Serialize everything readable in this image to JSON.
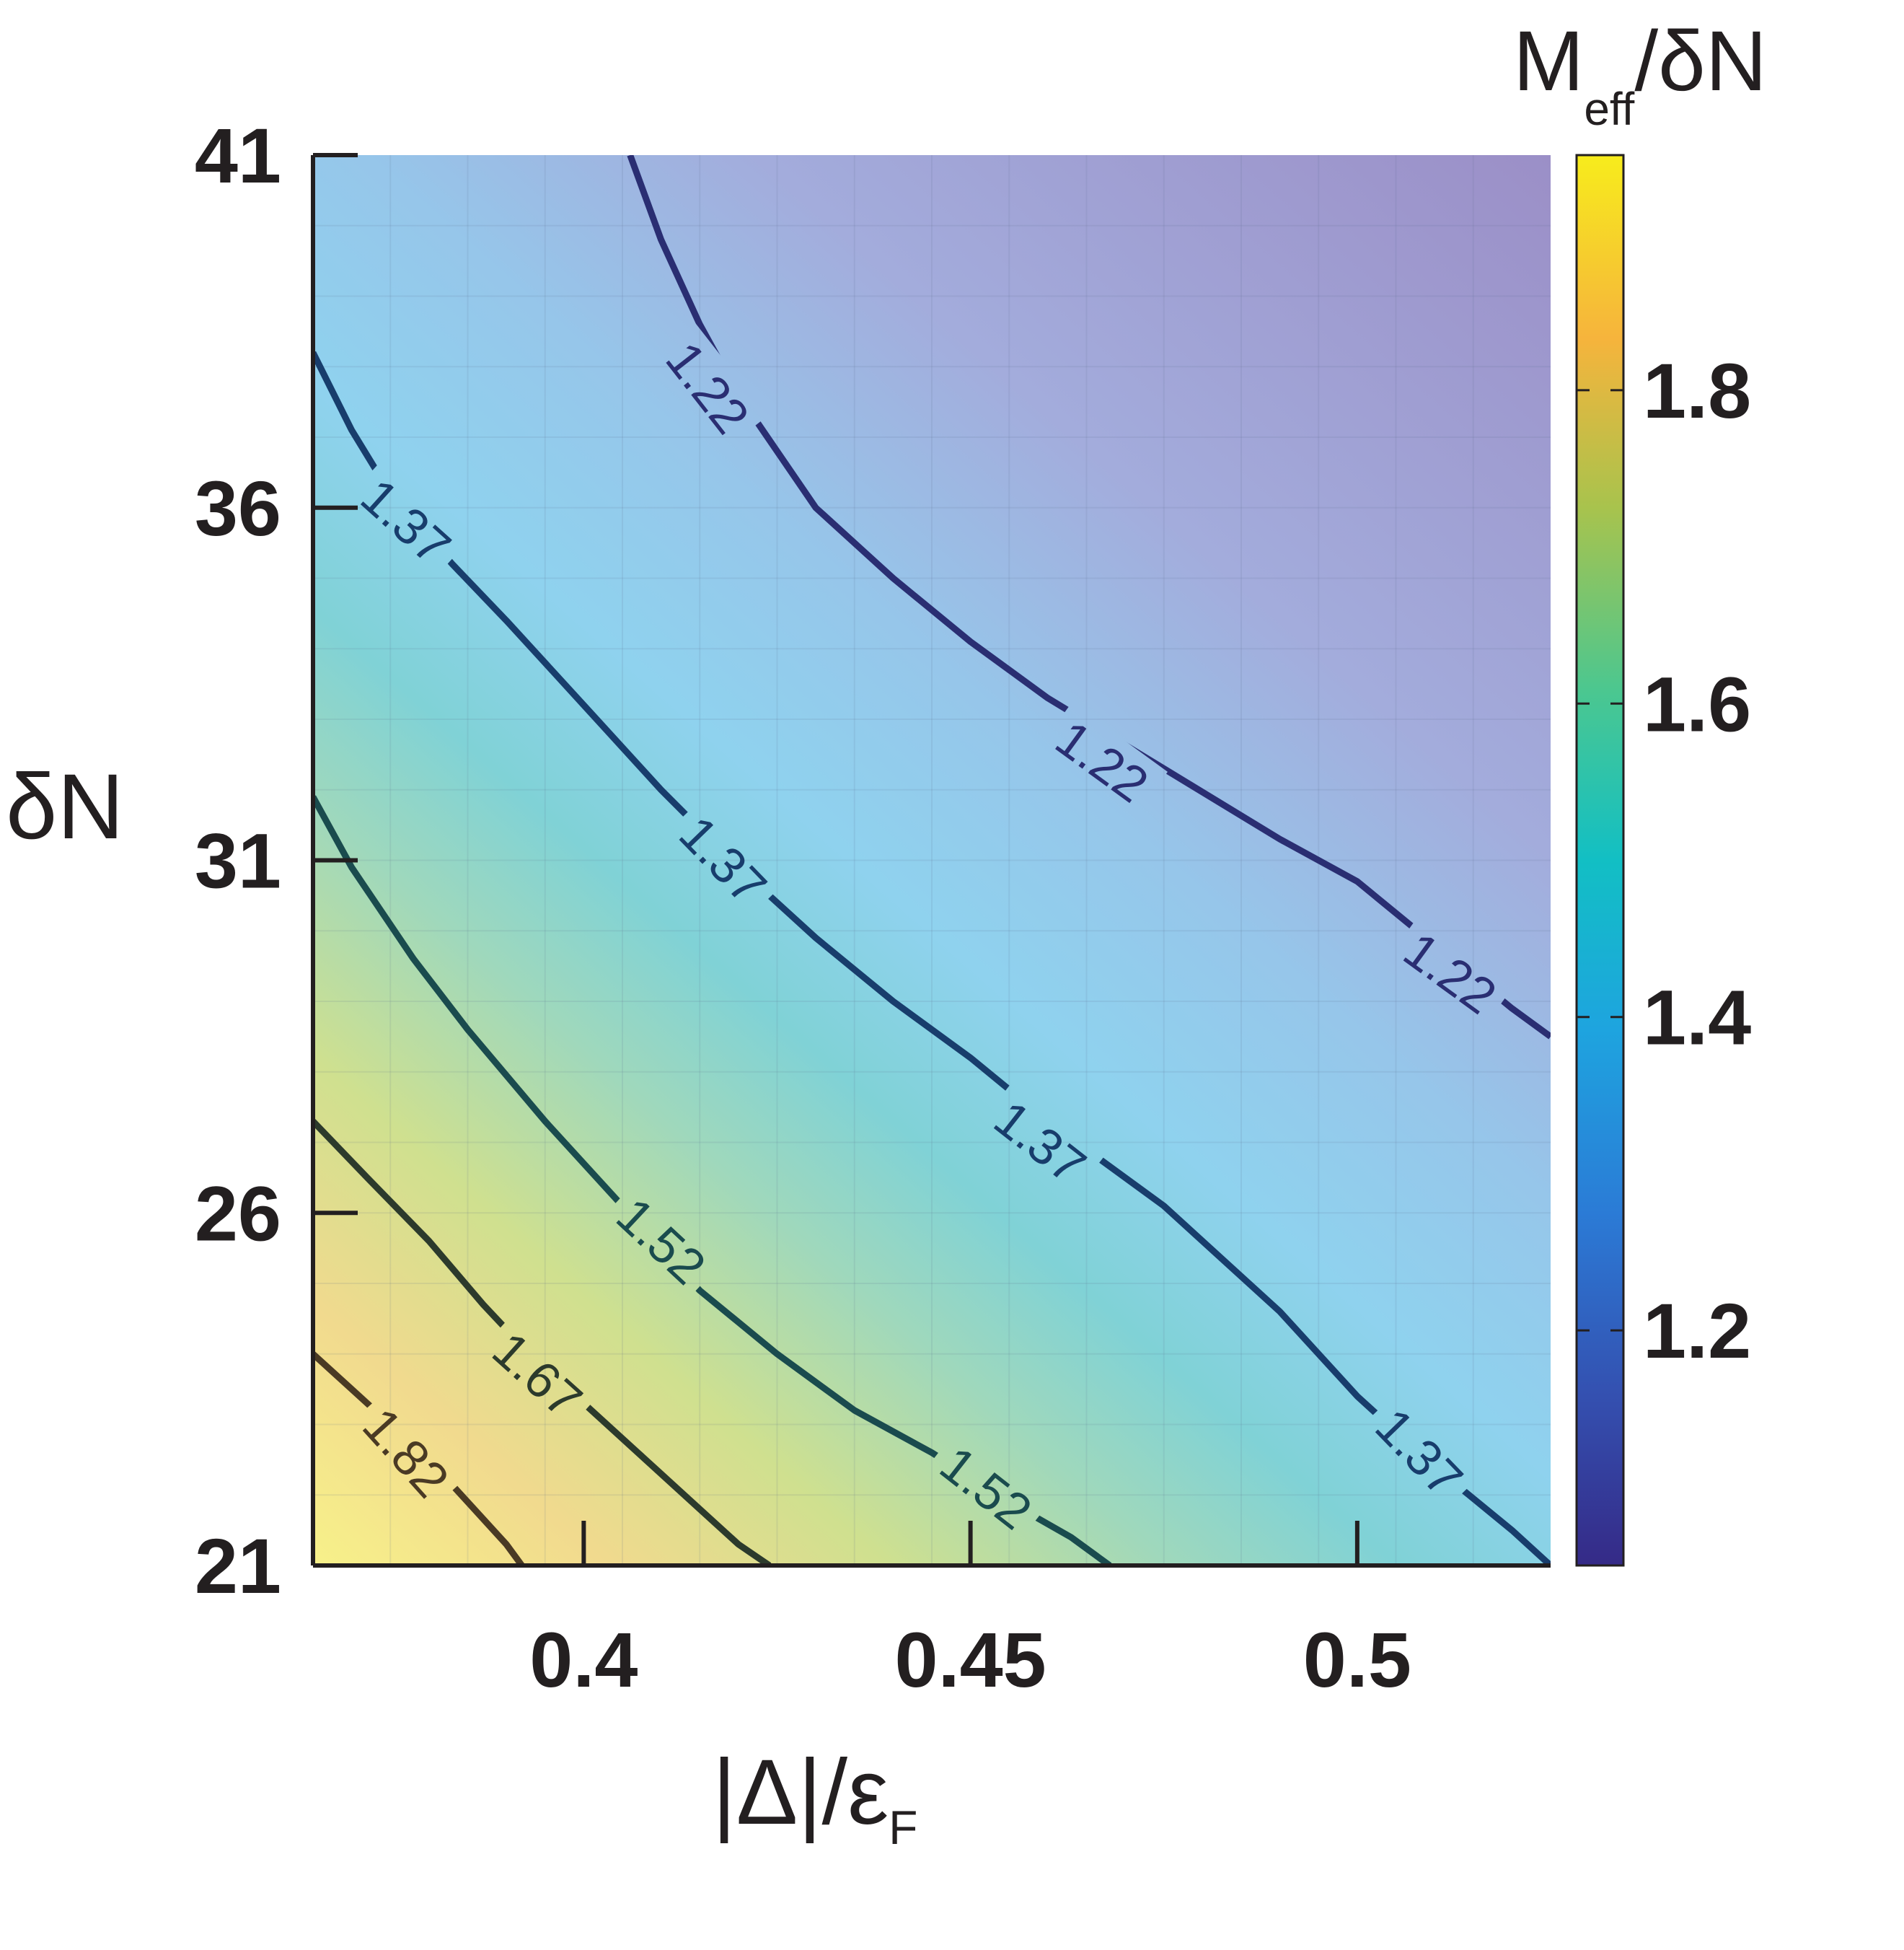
{
  "chart_data": {
    "type": "heatmap",
    "title": "",
    "xlabel": "|Δ|/ε",
    "xlabel_sub": "F",
    "ylabel": "δN",
    "colorbar_label": "M",
    "colorbar_label_sub": "eff",
    "colorbar_label_tail": "/δN",
    "xlim": [
      0.365,
      0.525
    ],
    "ylim": [
      21,
      41
    ],
    "xticks": [
      0.4,
      0.45,
      0.5
    ],
    "xtick_labels": [
      "0.4",
      "0.45",
      "0.5"
    ],
    "yticks": [
      21,
      26,
      31,
      36,
      41
    ],
    "ytick_labels": [
      "21",
      "26",
      "31",
      "36",
      "41"
    ],
    "colorbar_range": [
      1.05,
      1.95
    ],
    "colorbar_ticks": [
      1.2,
      1.4,
      1.6,
      1.8
    ],
    "colorbar_tick_labels": [
      "1.2",
      "1.4",
      "1.6",
      "1.8"
    ],
    "colormap": "parula",
    "grid": true,
    "contours": [
      {
        "level": "1.22",
        "color": "#2a2e72",
        "points": [
          [
            0.406,
            41
          ],
          [
            0.41,
            39.8
          ],
          [
            0.415,
            38.6
          ],
          [
            0.42,
            37.6
          ],
          [
            0.43,
            36.0
          ],
          [
            0.44,
            35.0
          ],
          [
            0.45,
            34.1
          ],
          [
            0.46,
            33.3
          ],
          [
            0.475,
            32.3
          ],
          [
            0.49,
            31.3
          ],
          [
            0.5,
            30.7
          ],
          [
            0.51,
            29.8
          ],
          [
            0.52,
            28.9
          ],
          [
            0.525,
            28.5
          ]
        ],
        "labels": [
          {
            "text": "1.22",
            "x": 0.416,
            "y": 37.7,
            "angle": 52
          },
          {
            "text": "1.22",
            "x": 0.467,
            "y": 32.4,
            "angle": 36
          },
          {
            "text": "1.22",
            "x": 0.512,
            "y": 29.4,
            "angle": 36
          }
        ]
      },
      {
        "level": "1.37",
        "color": "#183d6c",
        "points": [
          [
            0.365,
            38.2
          ],
          [
            0.37,
            37.1
          ],
          [
            0.375,
            36.2
          ],
          [
            0.383,
            35.2
          ],
          [
            0.39,
            34.4
          ],
          [
            0.4,
            33.2
          ],
          [
            0.41,
            32.0
          ],
          [
            0.42,
            30.9
          ],
          [
            0.43,
            29.9
          ],
          [
            0.44,
            29.0
          ],
          [
            0.45,
            28.2
          ],
          [
            0.46,
            27.3
          ],
          [
            0.475,
            26.1
          ],
          [
            0.49,
            24.6
          ],
          [
            0.5,
            23.4
          ],
          [
            0.51,
            22.4
          ],
          [
            0.52,
            21.5
          ],
          [
            0.525,
            21.0
          ]
        ],
        "labels": [
          {
            "text": "1.37",
            "x": 0.377,
            "y": 35.8,
            "angle": 42
          },
          {
            "text": "1.37",
            "x": 0.418,
            "y": 31.0,
            "angle": 46
          },
          {
            "text": "1.37",
            "x": 0.459,
            "y": 27.0,
            "angle": 38
          },
          {
            "text": "1.37",
            "x": 0.508,
            "y": 22.6,
            "angle": 46
          }
        ]
      },
      {
        "level": "1.52",
        "color": "#1a4b4e",
        "points": [
          [
            0.365,
            31.9
          ],
          [
            0.37,
            30.9
          ],
          [
            0.378,
            29.6
          ],
          [
            0.385,
            28.6
          ],
          [
            0.395,
            27.3
          ],
          [
            0.405,
            26.1
          ],
          [
            0.415,
            24.9
          ],
          [
            0.425,
            24.0
          ],
          [
            0.435,
            23.2
          ],
          [
            0.445,
            22.6
          ],
          [
            0.455,
            21.9
          ],
          [
            0.463,
            21.4
          ],
          [
            0.468,
            21.0
          ]
        ],
        "labels": [
          {
            "text": "1.52",
            "x": 0.41,
            "y": 25.6,
            "angle": 43
          },
          {
            "text": "1.52",
            "x": 0.452,
            "y": 22.1,
            "angle": 38
          }
        ]
      },
      {
        "level": "1.67",
        "color": "#2c3a2c",
        "points": [
          [
            0.365,
            27.3
          ],
          [
            0.372,
            26.5
          ],
          [
            0.38,
            25.6
          ],
          [
            0.387,
            24.7
          ],
          [
            0.393,
            24.0
          ],
          [
            0.4,
            23.3
          ],
          [
            0.408,
            22.5
          ],
          [
            0.415,
            21.8
          ],
          [
            0.42,
            21.3
          ],
          [
            0.424,
            21.0
          ]
        ],
        "labels": [
          {
            "text": "1.67",
            "x": 0.394,
            "y": 23.7,
            "angle": 42
          }
        ]
      },
      {
        "level": "1.82",
        "color": "#4a3a24",
        "points": [
          [
            0.365,
            24.0
          ],
          [
            0.37,
            23.5
          ],
          [
            0.375,
            23.0
          ],
          [
            0.38,
            22.5
          ],
          [
            0.385,
            21.9
          ],
          [
            0.39,
            21.3
          ],
          [
            0.392,
            21.0
          ]
        ],
        "labels": [
          {
            "text": "1.82",
            "x": 0.377,
            "y": 22.6,
            "angle": 48
          }
        ]
      }
    ]
  }
}
